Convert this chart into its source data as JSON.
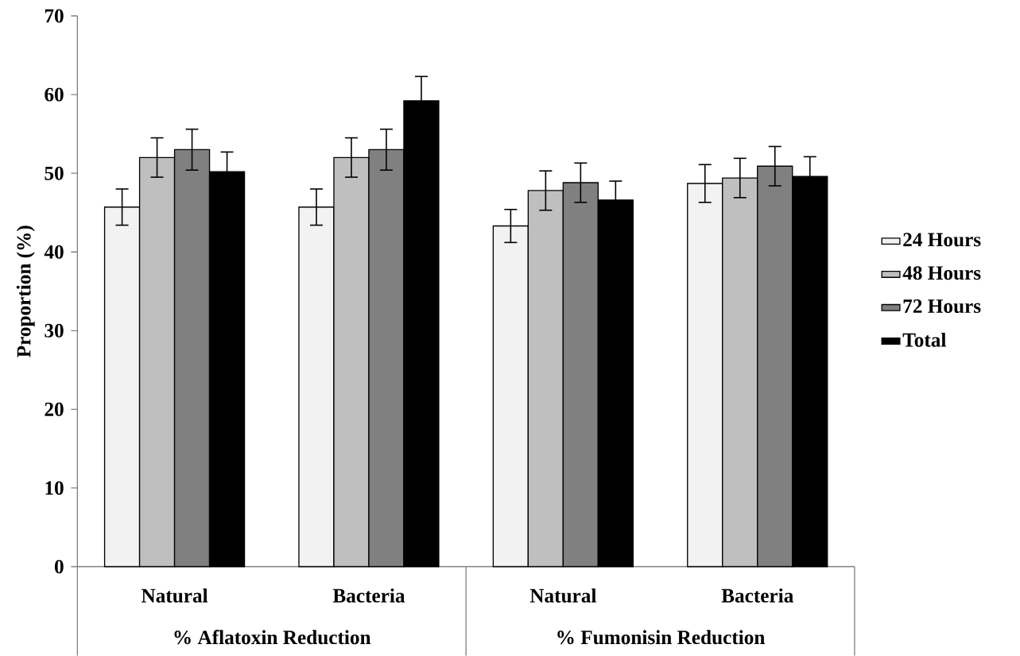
{
  "chart_data": {
    "type": "bar",
    "categories": [
      "Natural",
      "Bacteria",
      "Natural",
      "Bacteria"
    ],
    "series": [
      {
        "name": "24 Hours",
        "color": "#f2f2f2",
        "values": [
          45.7,
          45.7,
          43.3,
          48.7
        ],
        "errors": [
          2.3,
          2.3,
          2.1,
          2.4
        ]
      },
      {
        "name": "48 Hours",
        "color": "#bfbfbf",
        "values": [
          52.0,
          52.0,
          47.8,
          49.4
        ],
        "errors": [
          2.5,
          2.5,
          2.5,
          2.5
        ]
      },
      {
        "name": "72 Hours",
        "color": "#808080",
        "values": [
          53.0,
          53.0,
          48.8,
          50.9
        ],
        "errors": [
          2.6,
          2.6,
          2.5,
          2.5
        ]
      },
      {
        "name": "Total",
        "color": "#000000",
        "values": [
          50.2,
          59.2,
          46.6,
          49.6
        ],
        "errors": [
          2.5,
          3.1,
          2.4,
          2.5
        ]
      }
    ],
    "ylabel": "Proportion (%)",
    "ylim": [
      0,
      70
    ],
    "yticks": [
      0,
      10,
      20,
      30,
      40,
      50,
      60,
      70
    ],
    "annotations": [
      "% Aflatoxin Reduction",
      "% Fumonisin Reduction"
    ],
    "legend": "right"
  }
}
